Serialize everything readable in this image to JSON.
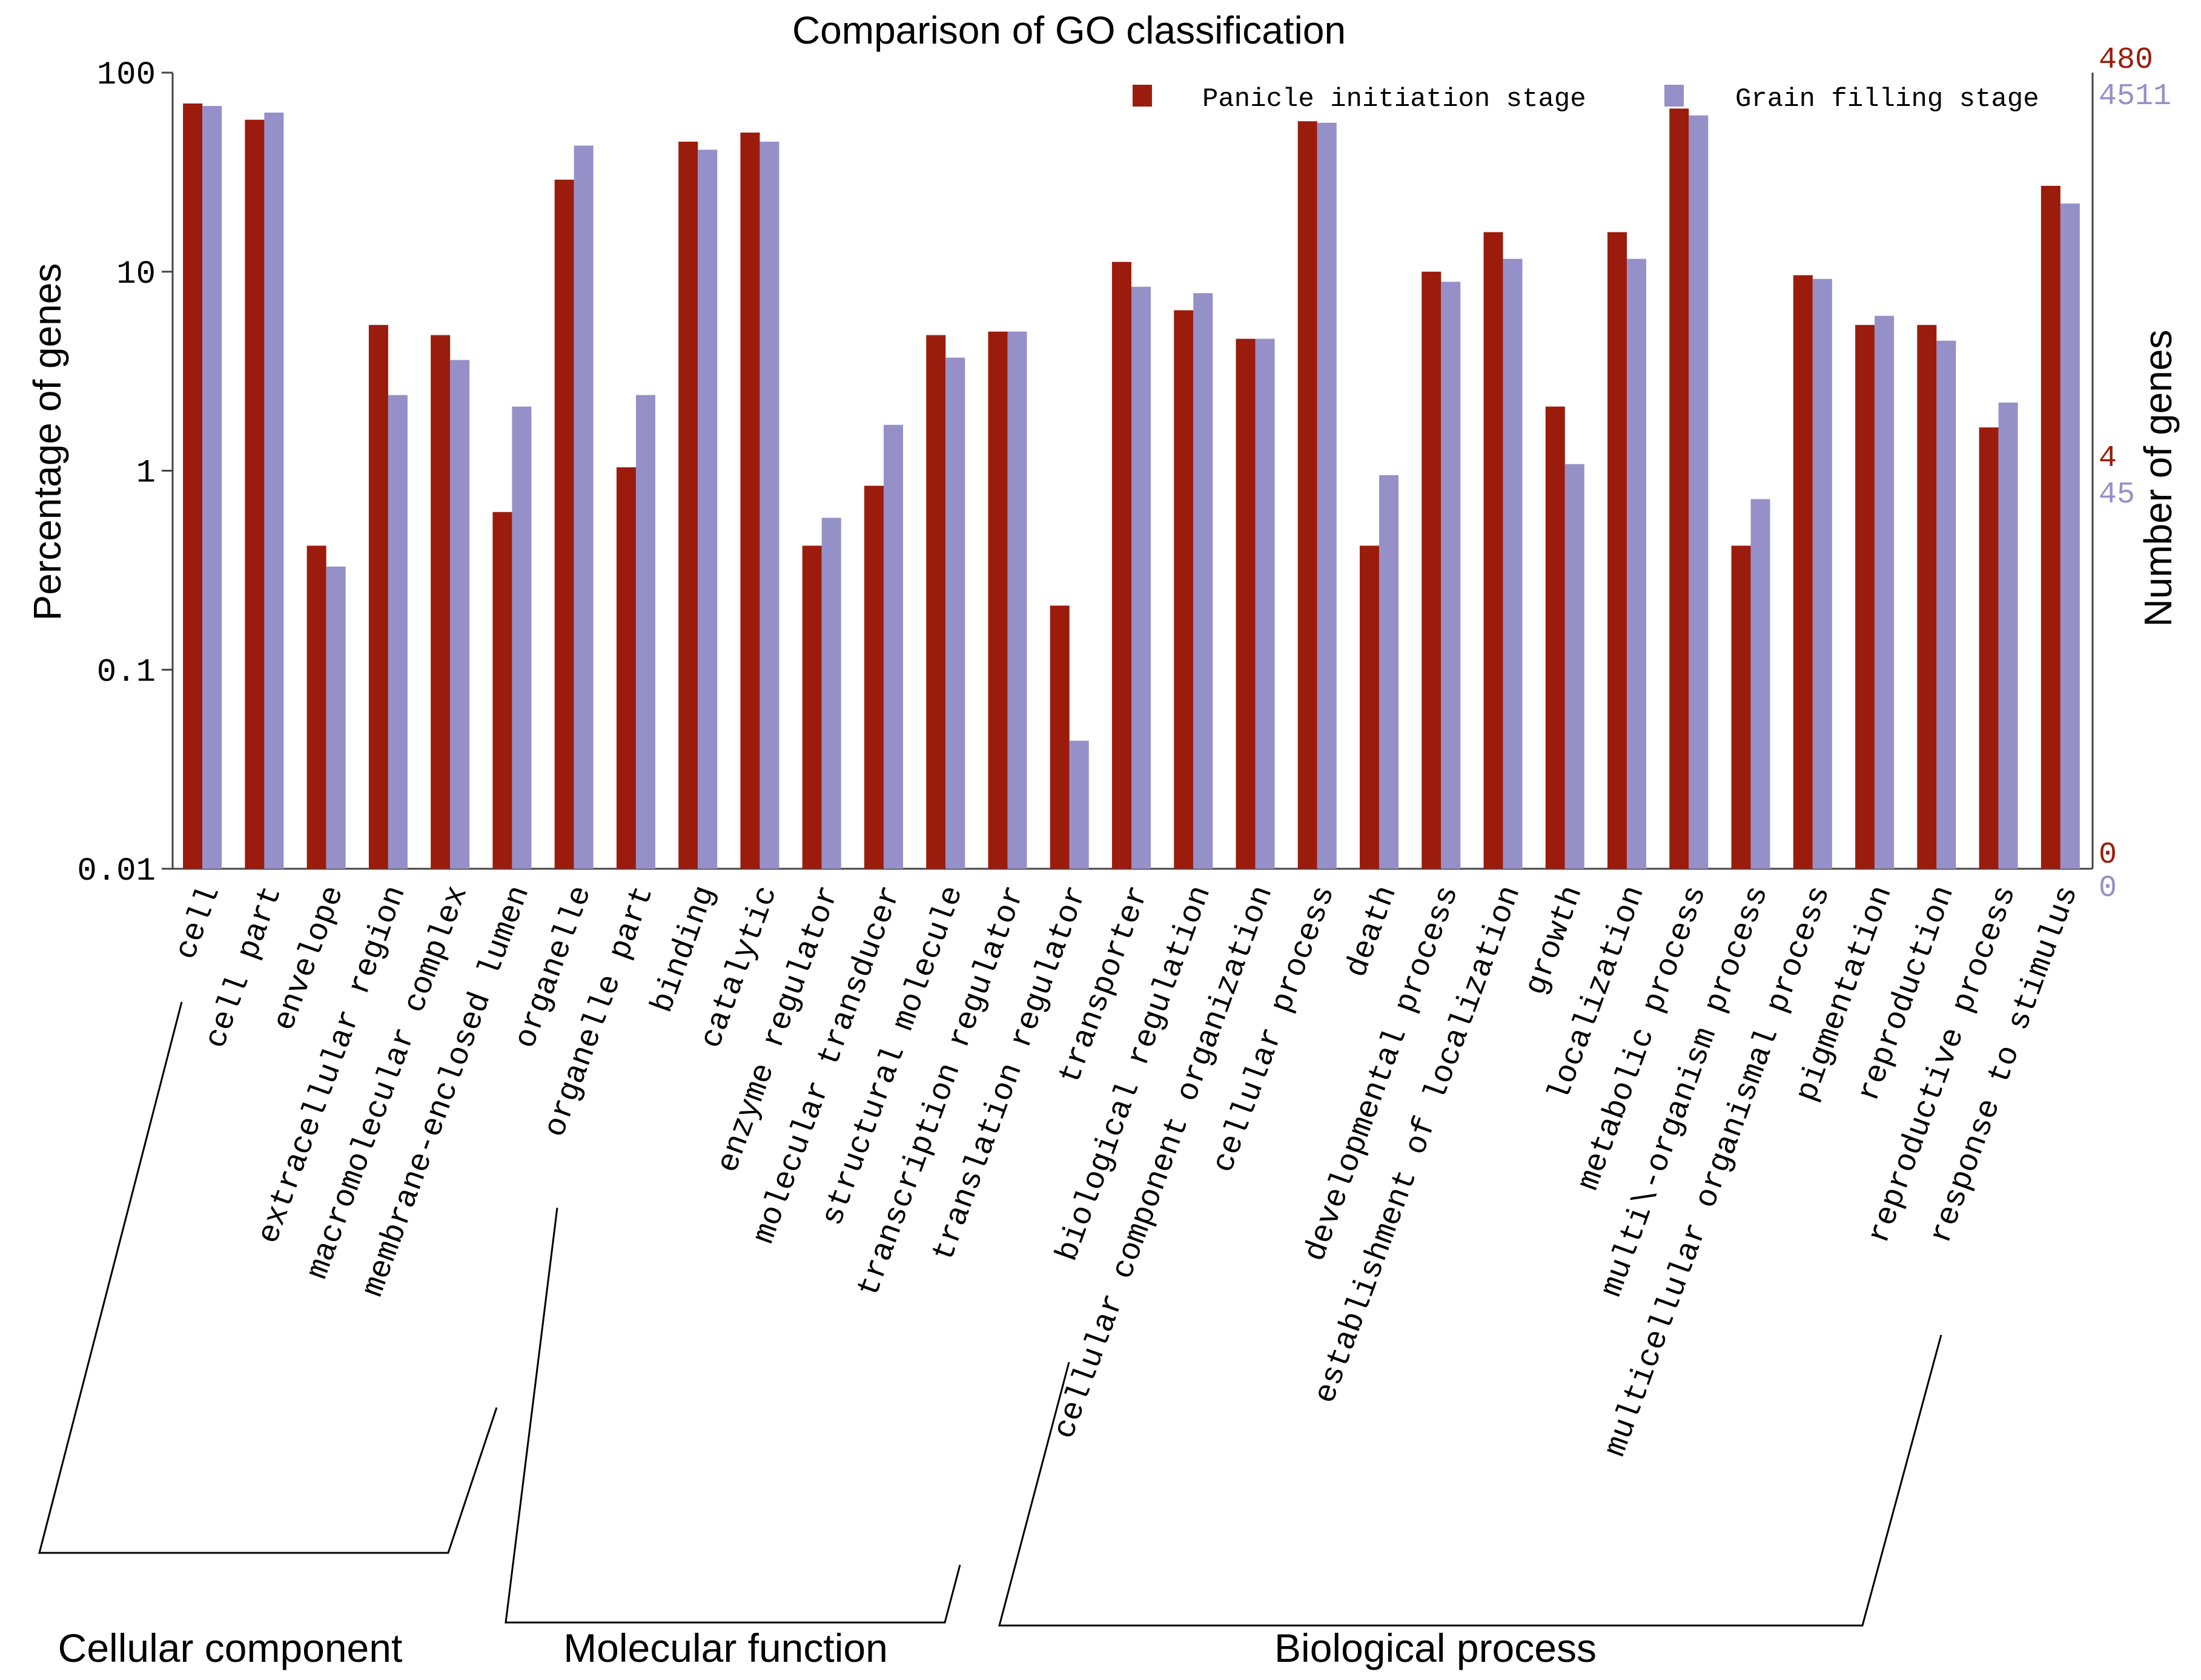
{
  "chart_data": {
    "type": "bar",
    "title": "Comparison of GO classification",
    "ylabel": "Percentage of genes",
    "ylabel_right": "Number of genes",
    "yscale": "log",
    "ylim": [
      0.01,
      100
    ],
    "yticks": [
      "0.01",
      "0.1",
      "1",
      "10",
      "100"
    ],
    "right_axis": {
      "panicle_ticks": [
        "480",
        "4",
        "0"
      ],
      "grain_ticks": [
        "4511",
        "45",
        "0"
      ]
    },
    "categories": [
      "cell",
      "cell part",
      "envelope",
      "extracellular region",
      "macromolecular complex",
      "membrane-enclosed lumen",
      "organelle",
      "organelle part",
      "binding",
      "catalytic",
      "enzyme regulator",
      "molecular transducer",
      "structural molecule",
      "transcription regulator",
      "translation regulator",
      "transporter",
      "biological regulation",
      "cellular component organization",
      "cellular process",
      "death",
      "developmental process",
      "establishment of localization",
      "growth",
      "localization",
      "metabolic process",
      "multi\\-organism process",
      "multicellular organismal process",
      "pigmentation",
      "reproduction",
      "reproductive process",
      "response to stimulus"
    ],
    "series": [
      {
        "name": "Panicle initiation stage",
        "color": "#9b1c0c",
        "values": [
          70,
          58,
          0.42,
          5.4,
          4.8,
          0.62,
          29,
          1.04,
          45,
          50,
          0.42,
          0.84,
          4.8,
          5.0,
          0.21,
          11.2,
          6.4,
          4.6,
          57,
          0.42,
          10.0,
          15.8,
          2.1,
          15.8,
          66,
          0.42,
          9.6,
          5.4,
          5.4,
          1.65,
          27
        ]
      },
      {
        "name": "Grain filling stage",
        "color": "#9690c8",
        "values": [
          68,
          63,
          0.33,
          2.4,
          3.6,
          2.1,
          43,
          2.4,
          41,
          45,
          0.58,
          1.7,
          3.7,
          5.0,
          0.044,
          8.4,
          7.8,
          4.6,
          56,
          0.95,
          8.9,
          11.6,
          1.08,
          11.6,
          61,
          0.72,
          9.2,
          6.0,
          4.5,
          2.2,
          22
        ]
      }
    ],
    "groups": [
      {
        "label": "Cellular component",
        "start": 0,
        "end": 7
      },
      {
        "label": "Molecular function",
        "start": 8,
        "end": 15
      },
      {
        "label": "Biological process",
        "start": 16,
        "end": 30
      }
    ],
    "legend_position": "top-right"
  }
}
